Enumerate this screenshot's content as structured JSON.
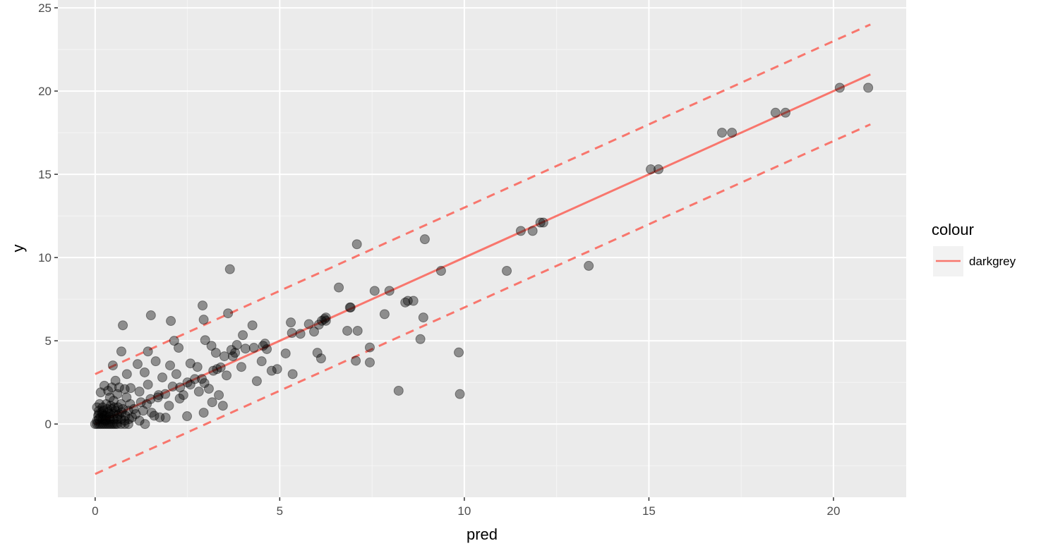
{
  "chart_data": {
    "type": "scatter",
    "xlabel": "pred",
    "ylabel": "y",
    "xlim": [
      -1.01,
      21.97
    ],
    "ylim": [
      -4.4,
      25.47
    ],
    "x_ticks": [
      "0",
      "5",
      "10",
      "15",
      "20"
    ],
    "y_ticks": [
      "0",
      "5",
      "10",
      "15",
      "20",
      "25"
    ],
    "grid": true,
    "legend": {
      "title": "colour",
      "entries": [
        "darkgrey"
      ],
      "placement": "right"
    },
    "line_color": "#F8766D",
    "point_color": "#000000",
    "point_alpha": 0.4,
    "reference_lines": [
      {
        "intercept": 0,
        "slope": 1,
        "style": "solid",
        "x_range": [
          0,
          21
        ]
      },
      {
        "intercept": 3,
        "slope": 1,
        "style": "dashed",
        "x_range": [
          0,
          21
        ]
      },
      {
        "intercept": -3,
        "slope": 1,
        "style": "dashed",
        "x_range": [
          0,
          21
        ]
      }
    ],
    "points": [
      [
        20.17,
        20.2
      ],
      [
        20.94,
        20.2
      ],
      [
        18.43,
        18.7
      ],
      [
        18.7,
        18.7
      ],
      [
        16.98,
        17.5
      ],
      [
        17.25,
        17.5
      ],
      [
        15.05,
        15.3
      ],
      [
        15.26,
        15.3
      ],
      [
        11.53,
        11.6
      ],
      [
        11.85,
        11.6
      ],
      [
        12.06,
        12.1
      ],
      [
        12.14,
        12.1
      ],
      [
        11.15,
        9.2
      ],
      [
        13.37,
        9.5
      ],
      [
        8.93,
        11.1
      ],
      [
        7.09,
        10.8
      ],
      [
        3.65,
        9.3
      ],
      [
        9.37,
        9.2
      ],
      [
        7.57,
        8.0
      ],
      [
        7.97,
        8.0
      ],
      [
        6.6,
        8.2
      ],
      [
        8.47,
        7.4
      ],
      [
        8.62,
        7.4
      ],
      [
        8.4,
        7.3
      ],
      [
        7.84,
        6.6
      ],
      [
        8.89,
        6.4
      ],
      [
        6.9,
        7.0
      ],
      [
        6.92,
        7.0
      ],
      [
        6.83,
        5.6
      ],
      [
        7.11,
        5.6
      ],
      [
        8.81,
        5.1
      ],
      [
        9.85,
        4.3
      ],
      [
        9.88,
        1.8
      ],
      [
        8.22,
        2.0
      ],
      [
        7.44,
        4.6
      ],
      [
        7.06,
        3.8
      ],
      [
        7.44,
        3.7
      ],
      [
        6.25,
        6.4
      ],
      [
        6.25,
        6.2
      ],
      [
        6.14,
        6.2
      ],
      [
        5.79,
        6.0
      ],
      [
        5.3,
        6.1
      ],
      [
        5.33,
        5.47
      ],
      [
        5.56,
        5.42
      ],
      [
        5.16,
        4.24
      ],
      [
        5.35,
        3.0
      ],
      [
        4.93,
        3.3
      ],
      [
        4.78,
        3.2
      ],
      [
        4.51,
        3.77
      ],
      [
        4.38,
        2.58
      ],
      [
        4.3,
        4.58
      ],
      [
        4.07,
        4.53
      ],
      [
        4.26,
        5.93
      ],
      [
        4.0,
        5.34
      ],
      [
        3.79,
        4.28
      ],
      [
        3.84,
        4.75
      ],
      [
        3.69,
        4.45
      ],
      [
        3.56,
        2.92
      ],
      [
        3.35,
        1.74
      ],
      [
        3.46,
        1.1
      ],
      [
        2.94,
        0.68
      ],
      [
        3.08,
        2.12
      ],
      [
        2.89,
        2.71
      ],
      [
        2.91,
        7.12
      ],
      [
        2.94,
        6.27
      ],
      [
        2.98,
        5.04
      ],
      [
        2.05,
        6.19
      ],
      [
        1.51,
        6.53
      ],
      [
        0.75,
        5.93
      ],
      [
        0.48,
        3.52
      ],
      [
        0.71,
        4.36
      ],
      [
        1.15,
        3.6
      ],
      [
        1.43,
        4.36
      ],
      [
        2.14,
        5.0
      ],
      [
        2.26,
        4.58
      ],
      [
        2.03,
        3.52
      ],
      [
        1.64,
        3.77
      ],
      [
        2.1,
        2.25
      ],
      [
        2.29,
        1.53
      ],
      [
        2.49,
        0.47
      ],
      [
        3.6,
        6.65
      ],
      [
        3.15,
        4.7
      ],
      [
        3.27,
        4.28
      ],
      [
        3.5,
        4.07
      ],
      [
        3.73,
        4.07
      ],
      [
        3.96,
        3.43
      ],
      [
        4.65,
        4.5
      ],
      [
        4.6,
        4.83
      ],
      [
        4.55,
        4.7
      ],
      [
        2.58,
        3.64
      ],
      [
        2.77,
        3.43
      ],
      [
        2.2,
        3.0
      ],
      [
        1.82,
        2.8
      ],
      [
        1.34,
        3.1
      ],
      [
        1.72,
        1.74
      ],
      [
        1.24,
        1.31
      ],
      [
        2.39,
        1.74
      ],
      [
        2.81,
        1.95
      ],
      [
        2.0,
        1.1
      ],
      [
        1.53,
        0.68
      ],
      [
        1.05,
        0.9
      ],
      [
        1.43,
        2.37
      ],
      [
        0.96,
        2.16
      ],
      [
        0.86,
        3.0
      ],
      [
        1.2,
        1.95
      ],
      [
        5.93,
        5.55
      ],
      [
        6.02,
        4.28
      ],
      [
        6.12,
        3.94
      ],
      [
        6.21,
        6.31
      ],
      [
        6.06,
        5.97
      ],
      [
        2.96,
        2.46
      ],
      [
        3.17,
        1.31
      ],
      [
        2.58,
        2.37
      ],
      [
        1.91,
        0.38
      ],
      [
        3.4,
        3.4
      ],
      [
        3.3,
        3.3
      ],
      [
        3.2,
        3.2
      ],
      [
        2.7,
        2.7
      ],
      [
        2.5,
        2.5
      ],
      [
        2.3,
        2.2
      ],
      [
        1.9,
        1.8
      ],
      [
        1.7,
        1.6
      ],
      [
        1.5,
        1.5
      ],
      [
        1.4,
        1.2
      ],
      [
        1.3,
        0.8
      ],
      [
        1.6,
        0.5
      ],
      [
        1.75,
        0.4
      ],
      [
        1.1,
        0.6
      ],
      [
        1.0,
        0.4
      ],
      [
        1.2,
        0.2
      ],
      [
        1.35,
        0.0
      ],
      [
        0.9,
        0.8
      ],
      [
        0.95,
        1.2
      ],
      [
        0.85,
        1.6
      ],
      [
        0.8,
        2.1
      ],
      [
        0.65,
        2.2
      ],
      [
        0.55,
        2.6
      ],
      [
        0.45,
        2.2
      ],
      [
        0.35,
        2.0
      ],
      [
        0.25,
        2.3
      ],
      [
        0.15,
        1.9
      ],
      [
        0.6,
        1.8
      ],
      [
        0.5,
        1.4
      ],
      [
        0.4,
        1.6
      ],
      [
        0.3,
        1.2
      ],
      [
        0.2,
        1.0
      ],
      [
        0.1,
        0.8
      ],
      [
        0.7,
        1.2
      ],
      [
        0.75,
        0.9
      ],
      [
        0.65,
        0.6
      ],
      [
        0.55,
        0.8
      ],
      [
        0.45,
        0.9
      ],
      [
        0.35,
        0.7
      ],
      [
        0.25,
        0.5
      ],
      [
        0.15,
        0.4
      ],
      [
        0.05,
        0.2
      ],
      [
        0.0,
        0.0
      ],
      [
        0.05,
        0.0
      ],
      [
        0.1,
        0.0
      ],
      [
        0.15,
        0.0
      ],
      [
        0.2,
        0.0
      ],
      [
        0.25,
        0.0
      ],
      [
        0.3,
        0.0
      ],
      [
        0.35,
        0.0
      ],
      [
        0.4,
        0.0
      ],
      [
        0.45,
        0.0
      ],
      [
        0.5,
        0.0
      ],
      [
        0.55,
        0.0
      ],
      [
        0.6,
        0.0
      ],
      [
        0.7,
        0.0
      ],
      [
        0.8,
        0.0
      ],
      [
        0.9,
        0.0
      ],
      [
        0.1,
        0.3
      ],
      [
        0.2,
        0.3
      ],
      [
        0.3,
        0.3
      ],
      [
        0.4,
        0.3
      ],
      [
        0.5,
        0.3
      ],
      [
        0.6,
        0.3
      ],
      [
        0.7,
        0.3
      ],
      [
        0.8,
        0.2
      ],
      [
        0.1,
        0.6
      ],
      [
        0.2,
        0.6
      ],
      [
        0.3,
        0.5
      ],
      [
        0.4,
        0.6
      ],
      [
        0.5,
        0.6
      ],
      [
        0.6,
        0.5
      ],
      [
        0.05,
        1.0
      ],
      [
        0.12,
        1.2
      ],
      [
        0.22,
        0.8
      ],
      [
        0.33,
        0.9
      ],
      [
        0.42,
        1.1
      ],
      [
        0.52,
        1.0
      ],
      [
        0.62,
        1.0
      ],
      [
        0.72,
        0.7
      ],
      [
        0.82,
        0.5
      ],
      [
        0.92,
        0.3
      ],
      [
        0.08,
        0.5
      ],
      [
        0.18,
        0.7
      ],
      [
        0.28,
        0.2
      ],
      [
        0.38,
        0.4
      ]
    ]
  }
}
